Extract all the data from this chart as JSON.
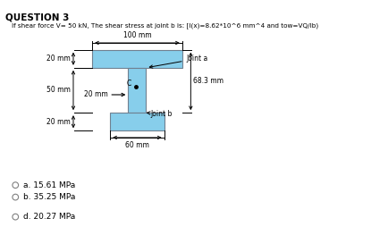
{
  "title": "QUESTION 3",
  "subtitle": "If shear force V= 50 kN, The shear stress at joint b is: [I(x)=8.62*10^6 mm^4 and tow=VQ/Ib)",
  "bg_color": "#ffffff",
  "shape_color": "#87CEEB",
  "shape_edge_color": "#708090",
  "options": [
    {
      "label": "a. 15.61 MPa"
    },
    {
      "label": "b. 35.25 MPa"
    },
    {
      "label": "d. 20.27 MPa"
    }
  ],
  "ann": {
    "top_w": "20 mm",
    "web_h": "50 mm",
    "bot_w": "20 mm",
    "top_dim": "100 mm",
    "bot_dim": "60 mm",
    "web_dim": "20 mm",
    "joint_a": "Joint a",
    "joint_b": "Joint b",
    "dim_68": "68.3 mm",
    "C": "C"
  }
}
